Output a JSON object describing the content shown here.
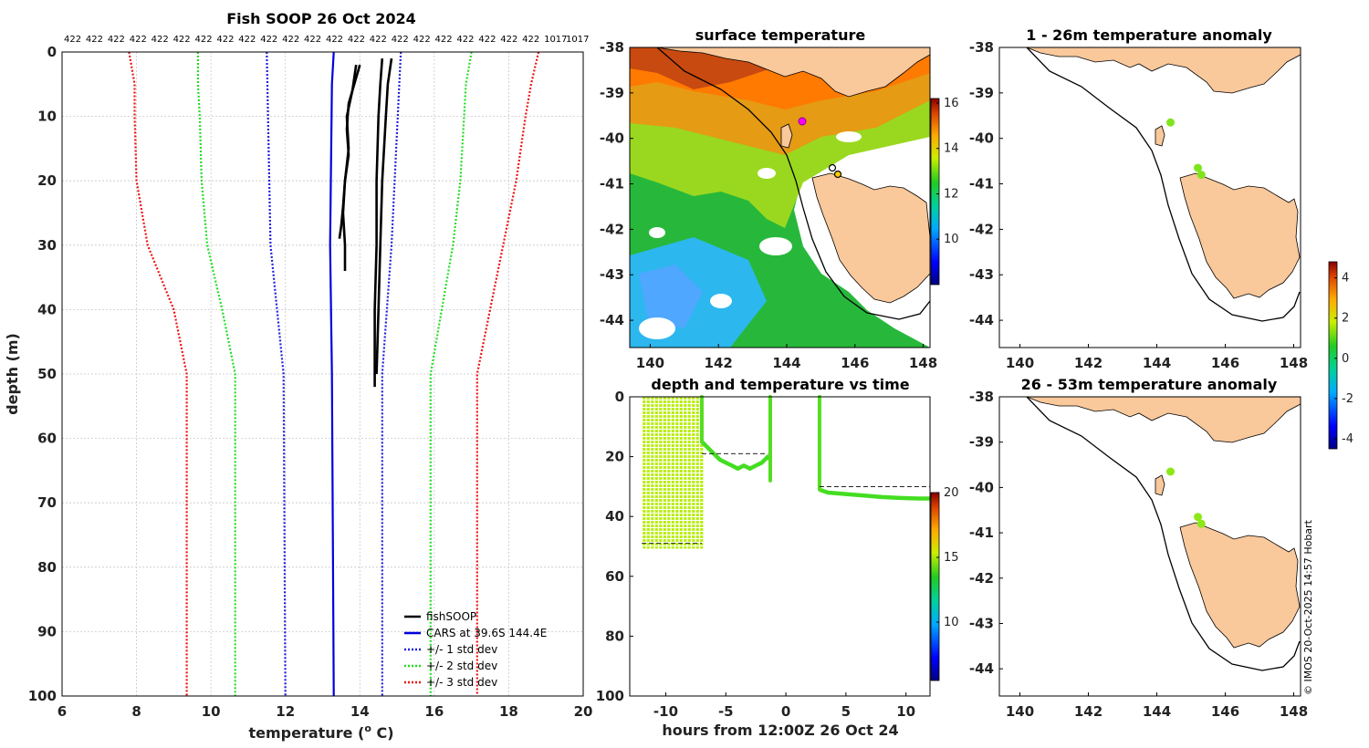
{
  "chart_data": [
    {
      "type": "line",
      "title": "Fish SOOP 26 Oct 2024",
      "xlabel": "temperature (",
      "xlabel_sup": "o",
      "xlabel_end": " C)",
      "ylabel": "depth (m)",
      "xlim": [
        6,
        20
      ],
      "ylim": [
        100,
        0
      ],
      "x_ticks": [
        "6",
        "8",
        "10",
        "12",
        "14",
        "16",
        "18",
        "20"
      ],
      "y_ticks": [
        "0",
        "10",
        "20",
        "30",
        "40",
        "50",
        "60",
        "70",
        "80",
        "90",
        "100"
      ],
      "top_counts": [
        "422",
        "422",
        "422",
        "422",
        "422",
        "422",
        "422",
        "422",
        "422",
        "422",
        "422",
        "422",
        "422",
        "422",
        "422",
        "422",
        "422",
        "422",
        "422",
        "422",
        "422",
        "422",
        "1017",
        "1017"
      ],
      "legend": [
        "fishSOOP",
        "CARS at 39.6S 144.4E",
        "+/- 1 std dev",
        "+/- 2 std dev",
        "+/- 3 std dev"
      ],
      "colors": {
        "fishsoop": "#000000",
        "cars": "#0000dd",
        "std1": "#2020dd",
        "std2": "#22dd22",
        "std3": "#ee1111"
      },
      "series": [
        {
          "name": "CARS",
          "depth": [
            0,
            5,
            30,
            50,
            100
          ],
          "temp": [
            13.3,
            13.25,
            13.2,
            13.25,
            13.3
          ]
        },
        {
          "name": "cars_minus_1",
          "depth": [
            0,
            30,
            50,
            100
          ],
          "temp": [
            11.5,
            11.6,
            11.95,
            12.0
          ]
        },
        {
          "name": "cars_plus_1",
          "depth": [
            0,
            30,
            50,
            100
          ],
          "temp": [
            15.1,
            14.85,
            14.6,
            14.6
          ]
        },
        {
          "name": "cars_minus_2",
          "depth": [
            0,
            5,
            10,
            20,
            30,
            40,
            50,
            100
          ],
          "temp": [
            9.65,
            9.65,
            9.7,
            9.75,
            9.9,
            10.3,
            10.65,
            10.65
          ]
        },
        {
          "name": "cars_plus_2",
          "depth": [
            0,
            5,
            10,
            20,
            30,
            40,
            50,
            100
          ],
          "temp": [
            17.0,
            16.85,
            16.8,
            16.7,
            16.5,
            16.2,
            15.9,
            15.9
          ]
        },
        {
          "name": "cars_minus_3",
          "depth": [
            0,
            5,
            10,
            20,
            30,
            40,
            50,
            100
          ],
          "temp": [
            7.8,
            7.95,
            7.95,
            8.0,
            8.3,
            9.0,
            9.35,
            9.35
          ]
        },
        {
          "name": "cars_plus_3",
          "depth": [
            0,
            5,
            10,
            20,
            30,
            40,
            50,
            100
          ],
          "temp": [
            18.8,
            18.6,
            18.45,
            18.2,
            17.85,
            17.5,
            17.15,
            17.15
          ]
        },
        {
          "name": "fish_a",
          "depth": [
            2,
            5,
            8,
            12,
            16,
            20,
            24,
            27,
            29
          ],
          "temp": [
            14.0,
            13.85,
            13.7,
            13.65,
            13.7,
            13.6,
            13.55,
            13.5,
            13.45
          ]
        },
        {
          "name": "fish_b",
          "depth": [
            2,
            6,
            10,
            15,
            20,
            25,
            30,
            34
          ],
          "temp": [
            13.9,
            13.8,
            13.65,
            13.7,
            13.6,
            13.55,
            13.6,
            13.6
          ]
        },
        {
          "name": "fish_c",
          "depth": [
            1,
            5,
            10,
            20,
            30,
            40,
            50,
            52
          ],
          "temp": [
            14.6,
            14.55,
            14.5,
            14.45,
            14.45,
            14.4,
            14.4,
            14.4
          ]
        },
        {
          "name": "fish_d",
          "depth": [
            1,
            5,
            10,
            20,
            30,
            40,
            50
          ],
          "temp": [
            14.85,
            14.75,
            14.7,
            14.6,
            14.55,
            14.5,
            14.45
          ]
        }
      ]
    },
    {
      "type": "heatmap",
      "title": "surface temperature",
      "xlim": [
        139.4,
        148.2
      ],
      "ylim": [
        -44.6,
        -38
      ],
      "x_ticks": [
        "140",
        "142",
        "144",
        "146",
        "148"
      ],
      "y_ticks": [
        "-38",
        "-39",
        "-40",
        "-41",
        "-42",
        "-43",
        "-44"
      ],
      "colorbar_ticks": [
        "16",
        "14",
        "12",
        "10"
      ],
      "colorbar_range": [
        8,
        16.2
      ]
    },
    {
      "type": "scatter",
      "title": "depth and temperature vs time",
      "xlabel": "hours from 12:00Z 26 Oct 24",
      "xlim": [
        -13,
        12
      ],
      "ylim": [
        100,
        0
      ],
      "x_ticks": [
        "-10",
        "-5",
        "0",
        "5",
        "10"
      ],
      "y_ticks": [
        "0",
        "20",
        "40",
        "60",
        "80",
        "100"
      ],
      "colorbar_ticks": [
        "20",
        "15",
        "10"
      ],
      "colorbar_range": [
        5.5,
        20
      ],
      "segments": [
        {
          "name": "profiles",
          "hours": [
            -11.8,
            -7.0
          ],
          "depth": [
            0,
            52
          ],
          "temp": 14.5
        },
        {
          "name": "tow1",
          "hours": [
            -7.0,
            -6.5,
            -6.0,
            -5.5,
            -5.0,
            -4.5,
            -4.0,
            -3.5,
            -3.0,
            -2.5,
            -2.0,
            -1.5,
            -1.3
          ],
          "depth": [
            15,
            17,
            19,
            21,
            22,
            23,
            24,
            23,
            24,
            23,
            22,
            20,
            21
          ],
          "temp": 13.5
        },
        {
          "name": "tow2",
          "hours": [
            2.8,
            3.5,
            5,
            6.5,
            8,
            9.5,
            11,
            12
          ],
          "depth": [
            31,
            32,
            32.5,
            33,
            33.5,
            33.8,
            34,
            34
          ],
          "temp": 13.0
        }
      ],
      "reference_depths": [
        {
          "hours": [
            -7.0,
            -1.5
          ],
          "depth": 19
        },
        {
          "hours": [
            2.8,
            12
          ],
          "depth": 30
        },
        {
          "hours": [
            -12,
            -7
          ],
          "depth": 49
        }
      ]
    },
    {
      "type": "scatter",
      "title": "1 - 26m temperature anomaly",
      "xlim": [
        139.4,
        148.2
      ],
      "ylim": [
        -44.6,
        -38
      ],
      "x_ticks": [
        "140",
        "142",
        "144",
        "146",
        "148"
      ],
      "y_ticks": [
        "-38",
        "-39",
        "-40",
        "-41",
        "-42",
        "-43",
        "-44"
      ],
      "points": [
        {
          "lon": 144.4,
          "lat": -39.65,
          "anomaly": 0.7
        },
        {
          "lon": 145.2,
          "lat": -40.65,
          "anomaly": 0.7
        },
        {
          "lon": 145.3,
          "lat": -40.8,
          "anomaly": 0.7
        }
      ]
    },
    {
      "type": "scatter",
      "title": "26 - 53m temperature anomaly",
      "xlim": [
        139.4,
        148.2
      ],
      "ylim": [
        -44.6,
        -38
      ],
      "x_ticks": [
        "140",
        "142",
        "144",
        "146",
        "148"
      ],
      "y_ticks": [
        "-38",
        "-39",
        "-40",
        "-41",
        "-42",
        "-43",
        "-44"
      ],
      "points": [
        {
          "lon": 144.4,
          "lat": -39.65,
          "anomaly": 0.9
        },
        {
          "lon": 145.2,
          "lat": -40.65,
          "anomaly": 0.9
        },
        {
          "lon": 145.3,
          "lat": -40.8,
          "anomaly": 0.9
        }
      ],
      "colorbar_ticks": [
        "4",
        "2",
        "0",
        "-2",
        "-4"
      ],
      "colorbar_range": [
        -4.5,
        4.8
      ]
    }
  ],
  "credit": "© IMOS 20-Oct-2025 14:57 Hobart"
}
